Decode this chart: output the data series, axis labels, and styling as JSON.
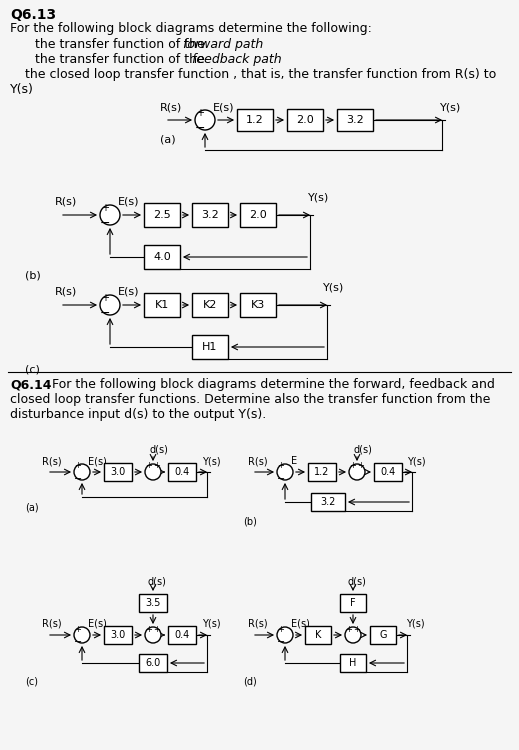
{
  "bg_color": "#f5f5f5",
  "title_q613": "Q6.13",
  "text_main": "For the following block diagrams determine the following:",
  "bullet1_reg": "the transfer function of the ",
  "bullet1_it": "forward path",
  "bullet2_reg": "the transfer function of the ",
  "bullet2_it": "feedback path",
  "bullet3": "the closed loop transfer function , that is, the transfer function from R(s) to",
  "ys_label": "Y(s)",
  "title_q614": "Q6.14",
  "q614_line1": " For the following block diagrams determine the forward, feedback and",
  "q614_line2": "closed loop transfer functions. Determine also the transfer function from the",
  "q614_line3": "disturbance input d(s) to the output Y(s)."
}
